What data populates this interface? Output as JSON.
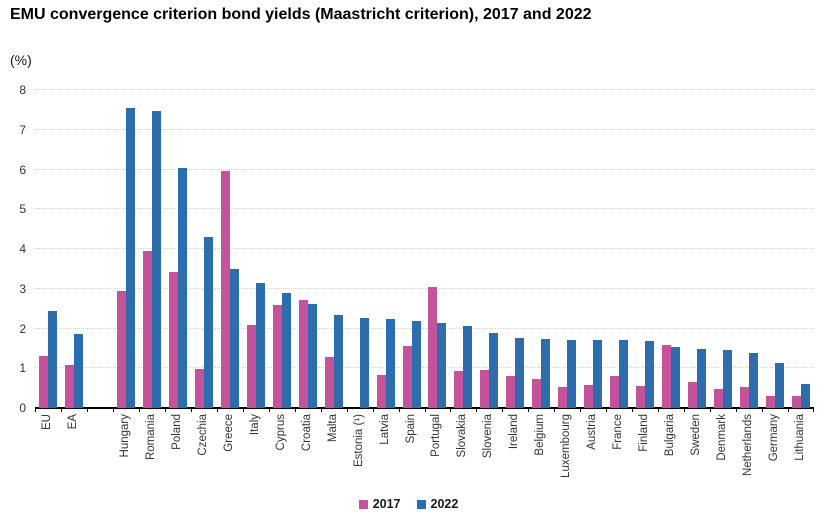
{
  "header": {
    "title": "EMU convergence criterion bond yields (Maastricht criterion), 2017 and 2022",
    "unit": "(%)"
  },
  "colors": {
    "series_2017": "#c4539b",
    "series_2022": "#2d6dab",
    "gridline": "#d6d6d6",
    "axis": "#000000",
    "tick_text": "#333333"
  },
  "chart_data": {
    "type": "bar",
    "title": "EMU convergence criterion bond yields (Maastricht criterion), 2017 and 2022",
    "xlabel": "",
    "ylabel": "(%)",
    "ylim": [
      0,
      8
    ],
    "yticks": [
      0,
      1,
      2,
      3,
      4,
      5,
      6,
      7,
      8
    ],
    "grid": "horizontal dotted",
    "legend_position": "bottom-center",
    "gap_after_index": 1,
    "categories": [
      "EU",
      "EA",
      "Hungary",
      "Romania",
      "Poland",
      "Czechia",
      "Greece",
      "Italy",
      "Cyprus",
      "Croatia",
      "Malta",
      "Estonia (¹)",
      "Latvia",
      "Spain",
      "Portugal",
      "Slovakia",
      "Slovenia",
      "Ireland",
      "Belgium",
      "Luxembourg",
      "Austria",
      "France",
      "Finland",
      "Bulgaria",
      "Sweden",
      "Denmark",
      "Netherlands",
      "Germany",
      "Lithuania"
    ],
    "series": [
      {
        "name": "2017",
        "color": "#c4539b",
        "values": [
          1.32,
          1.08,
          2.95,
          3.95,
          3.42,
          0.98,
          5.96,
          2.1,
          2.6,
          2.72,
          1.28,
          null,
          0.83,
          1.56,
          3.05,
          0.92,
          0.96,
          0.8,
          0.72,
          0.54,
          0.58,
          0.81,
          0.55,
          1.58,
          0.65,
          0.48,
          0.52,
          0.31,
          0.3
        ]
      },
      {
        "name": "2022",
        "color": "#2d6dab",
        "values": [
          2.45,
          1.85,
          7.56,
          7.47,
          6.04,
          4.3,
          3.49,
          3.15,
          2.9,
          2.62,
          2.35,
          2.27,
          2.24,
          2.19,
          2.15,
          2.07,
          1.88,
          1.76,
          1.73,
          1.72,
          1.71,
          1.7,
          1.68,
          1.53,
          1.49,
          1.45,
          1.39,
          1.14,
          0.61
        ]
      }
    ]
  }
}
